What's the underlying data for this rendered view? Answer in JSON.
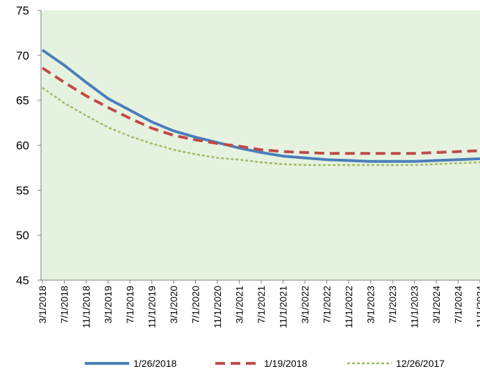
{
  "chart_data": {
    "type": "line",
    "title": "",
    "xlabel": "",
    "ylabel": "",
    "ylim": [
      45,
      75
    ],
    "yticks": [
      45,
      50,
      55,
      60,
      65,
      70,
      75
    ],
    "grid": false,
    "legend_position": "bottom",
    "plot_background": "#e6f2e0",
    "x_tick_labels": [
      "3/1/2018",
      "7/1/2018",
      "11/1/2018",
      "3/1/2019",
      "7/1/2019",
      "11/1/2019",
      "3/1/2020",
      "7/1/2020",
      "11/1/2020",
      "3/1/2021",
      "7/1/2021",
      "11/1/2021",
      "3/1/2022",
      "7/1/2022",
      "11/1/2022",
      "3/1/2023",
      "7/1/2023",
      "11/1/2023",
      "3/1/2024",
      "7/1/2024",
      "11/1/2024"
    ],
    "series": [
      {
        "name": "1/26/2018",
        "color": "#4a7ebb",
        "style": "solid",
        "values": [
          70.6,
          68.9,
          67.0,
          65.2,
          63.9,
          62.6,
          61.6,
          60.9,
          60.3,
          59.7,
          59.2,
          58.8,
          58.6,
          58.4,
          58.3,
          58.2,
          58.2,
          58.2,
          58.3,
          58.4,
          58.5
        ]
      },
      {
        "name": "1/19/2018",
        "color": "#be4b48",
        "style": "dashed",
        "values": [
          68.6,
          67.0,
          65.5,
          64.2,
          63.0,
          61.9,
          61.1,
          60.6,
          60.2,
          59.9,
          59.5,
          59.3,
          59.2,
          59.1,
          59.1,
          59.1,
          59.1,
          59.1,
          59.2,
          59.3,
          59.4
        ]
      },
      {
        "name": "12/26/2017",
        "color": "#9bbb59",
        "style": "dotted",
        "values": [
          66.4,
          64.7,
          63.3,
          62.0,
          61.0,
          60.2,
          59.5,
          59.0,
          58.6,
          58.4,
          58.1,
          57.9,
          57.8,
          57.8,
          57.8,
          57.8,
          57.8,
          57.8,
          57.9,
          58.0,
          58.1
        ]
      }
    ]
  }
}
